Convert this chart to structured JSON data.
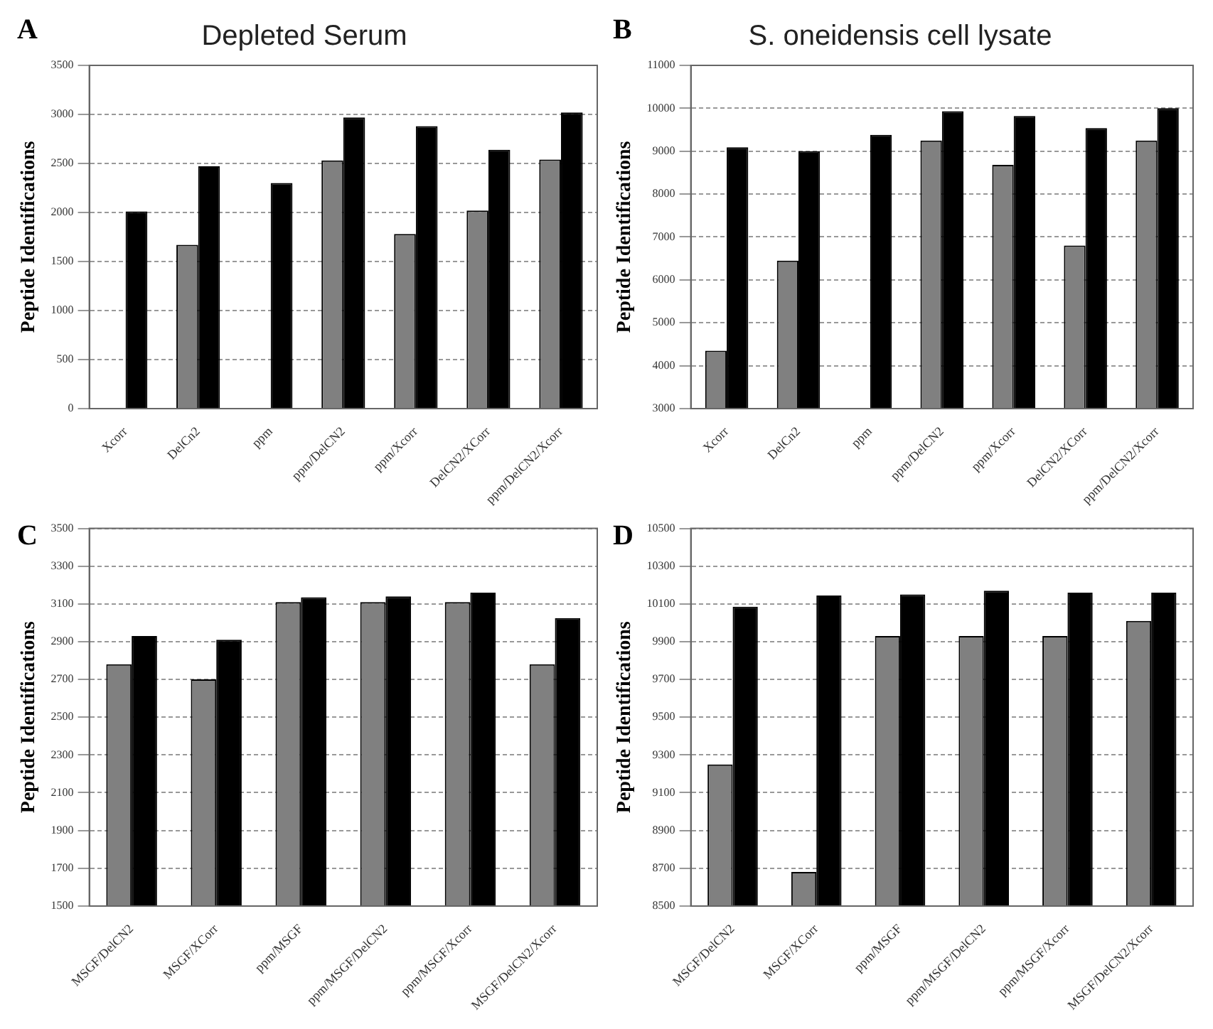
{
  "chart_data": [
    {
      "type": "bar",
      "title": "Depleted Serum",
      "ylabel": "Peptide Identifications",
      "annotations": [
        "A"
      ],
      "categories": [
        "Xcorr",
        "DelCn2",
        "ppm",
        "ppm/DelCN2",
        "ppm/Xcorr",
        "DelCN2/XCorr",
        "ppm/DelCN2/Xcorr"
      ],
      "series": [
        {
          "color": "#808080",
          "values": [
            null,
            1670,
            null,
            2530,
            1780,
            2020,
            2540
          ]
        },
        {
          "color": "#000000",
          "values": [
            2010,
            2470,
            2300,
            2970,
            2880,
            2640,
            3020
          ]
        }
      ],
      "ylim": [
        0,
        3500
      ],
      "yticks": [
        0,
        500,
        1000,
        1500,
        2000,
        2500,
        3000,
        3500
      ],
      "grid": "y",
      "legend": false
    },
    {
      "type": "bar",
      "title": "S. oneidensis cell lysate",
      "ylabel": "Peptide Identifications",
      "annotations": [
        "B"
      ],
      "categories": [
        "Xcorr",
        "DelCn2",
        "ppm",
        "ppm/DelCN2",
        "ppm/Xcorr",
        "DelCN2/XCorr",
        "ppm/DelCN2/Xcorr"
      ],
      "series": [
        {
          "color": "#808080",
          "values": [
            4350,
            6450,
            null,
            9250,
            8680,
            6800,
            9250
          ]
        },
        {
          "color": "#000000",
          "values": [
            9090,
            9000,
            9380,
            9930,
            9820,
            9540,
            10000
          ]
        }
      ],
      "ylim": [
        3000,
        11000
      ],
      "yticks": [
        3000,
        4000,
        5000,
        6000,
        7000,
        8000,
        9000,
        10000,
        11000
      ],
      "grid": "y",
      "legend": false
    },
    {
      "type": "bar",
      "ylabel": "Peptide Identifications",
      "annotations": [
        "C"
      ],
      "categories": [
        "MSGF/DelCN2",
        "MSGF/XCorr",
        "ppm/MSGF",
        "ppm/MSGF/DelCN2",
        "ppm/MSGF/Xcorr",
        "MSGF/DelCN2/Xcorr"
      ],
      "series": [
        {
          "color": "#808080",
          "values": [
            2780,
            2700,
            3110,
            3110,
            3110,
            2780
          ]
        },
        {
          "color": "#000000",
          "values": [
            2930,
            2910,
            3135,
            3140,
            3160,
            3025
          ]
        }
      ],
      "ylim": [
        1500,
        3500
      ],
      "yticks": [
        1500,
        1700,
        1900,
        2100,
        2300,
        2500,
        2700,
        2900,
        3100,
        3300,
        3500
      ],
      "grid": "y",
      "legend": false
    },
    {
      "type": "bar",
      "ylabel": "Peptide Identifications",
      "annotations": [
        "D"
      ],
      "categories": [
        "MSGF/DelCN2",
        "MSGF/XCorr",
        "ppm/MSGF",
        "ppm/MSGF/DelCN2",
        "ppm/MSGF/Xcorr",
        "MSGF/DelCN2/Xcorr"
      ],
      "series": [
        {
          "color": "#808080",
          "values": [
            9250,
            8680,
            9930,
            9930,
            9930,
            10010
          ]
        },
        {
          "color": "#000000",
          "values": [
            10085,
            10145,
            10150,
            10170,
            10160,
            10160
          ]
        }
      ],
      "ylim": [
        8500,
        10500
      ],
      "yticks": [
        8500,
        8700,
        8900,
        9100,
        9300,
        9500,
        9700,
        9900,
        10100,
        10300,
        10500
      ],
      "grid": "y",
      "legend": false
    }
  ]
}
